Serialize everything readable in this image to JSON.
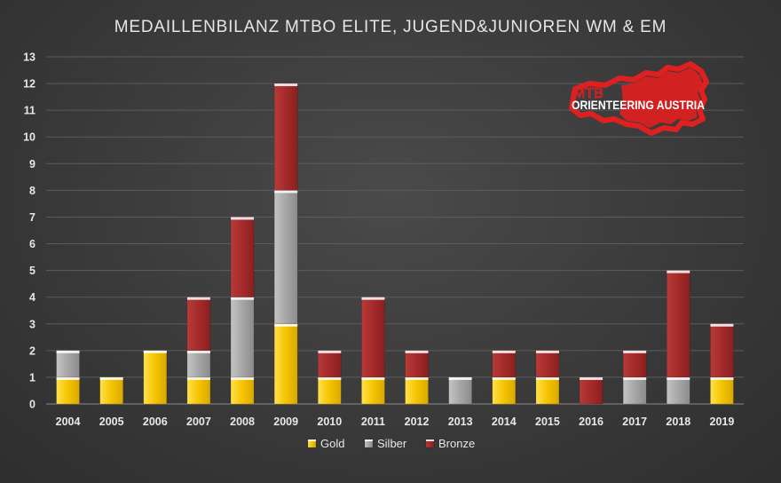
{
  "chart_data": {
    "type": "bar",
    "stacked": true,
    "title": "MEDAILLENBILANZ MTBO ELITE, JUGEND&JUNIOREN WM & EM",
    "categories": [
      "2004",
      "2005",
      "2006",
      "2007",
      "2008",
      "2009",
      "2010",
      "2011",
      "2012",
      "2013",
      "2014",
      "2015",
      "2016",
      "2017",
      "2018",
      "2019"
    ],
    "series": [
      {
        "name": "Gold",
        "color": "#f5c400",
        "values": [
          1,
          1,
          2,
          1,
          1,
          3,
          1,
          1,
          1,
          0,
          1,
          1,
          0,
          0,
          0,
          1
        ]
      },
      {
        "name": "Silber",
        "color": "#a6a6a6",
        "values": [
          1,
          0,
          0,
          1,
          3,
          5,
          0,
          0,
          0,
          1,
          0,
          0,
          0,
          1,
          1,
          0
        ]
      },
      {
        "name": "Bronze",
        "color": "#a52a2a",
        "values": [
          0,
          0,
          0,
          2,
          3,
          4,
          1,
          3,
          1,
          0,
          1,
          1,
          1,
          1,
          4,
          2
        ]
      }
    ],
    "yticks": [
      0,
      1,
      2,
      3,
      4,
      5,
      6,
      7,
      8,
      9,
      10,
      11,
      12,
      13
    ],
    "ylim": [
      0,
      13
    ],
    "grid": true,
    "legend_position": "bottom"
  },
  "logo": {
    "line1": "MTB",
    "line2": "ORIENTEERING AUSTRIA",
    "color": "#e02020"
  }
}
